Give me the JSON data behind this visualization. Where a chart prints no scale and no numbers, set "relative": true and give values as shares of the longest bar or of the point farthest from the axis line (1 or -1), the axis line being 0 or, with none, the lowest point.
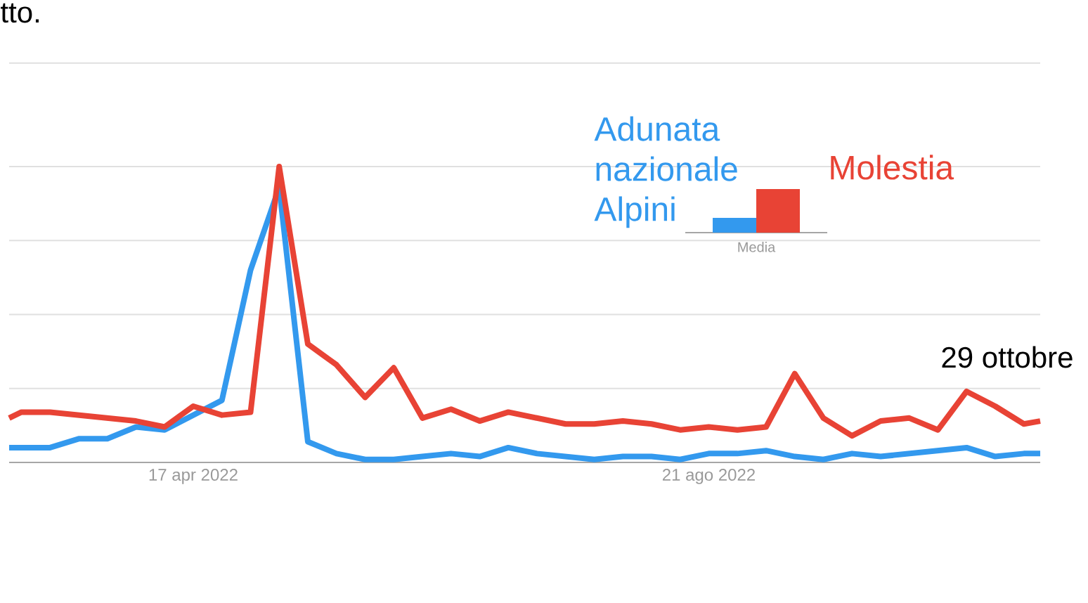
{
  "chart_data": [
    {
      "type": "line",
      "relative": true,
      "x": [
        "2022-03-03",
        "2022-03-06",
        "2022-03-13",
        "2022-03-20",
        "2022-03-27",
        "2022-04-03",
        "2022-04-10",
        "2022-04-17",
        "2022-04-24",
        "2022-05-01",
        "2022-05-08",
        "2022-05-15",
        "2022-05-22",
        "2022-05-29",
        "2022-06-05",
        "2022-06-12",
        "2022-06-19",
        "2022-06-26",
        "2022-07-03",
        "2022-07-10",
        "2022-07-17",
        "2022-07-24",
        "2022-07-31",
        "2022-08-07",
        "2022-08-14",
        "2022-08-21",
        "2022-08-28",
        "2022-09-04",
        "2022-09-11",
        "2022-09-18",
        "2022-09-25",
        "2022-10-02",
        "2022-10-09",
        "2022-10-16",
        "2022-10-23",
        "2022-10-30",
        "2022-11-06",
        "2022-11-10"
      ],
      "xlim": [
        "2022-03-03",
        "2022-11-10"
      ],
      "ref_lines": [
        {
          "axis": "y",
          "value": 0.25,
          "color": "#e0e0e0"
        },
        {
          "axis": "y",
          "value": 0.5,
          "color": "#e0e0e0"
        },
        {
          "axis": "y",
          "value": 0.75,
          "color": "#e0e0e0"
        },
        {
          "axis": "y",
          "value": 1,
          "color": "#e0e0e0"
        },
        {
          "axis": "y",
          "value": 1.35,
          "color": "#e0e0e0"
        }
      ],
      "xticks": [
        {
          "value": "2022-04-17",
          "label": "17 apr 2022"
        },
        {
          "value": "2022-08-21",
          "label": "21 ago 2022"
        }
      ],
      "series": [
        {
          "name": "Adunata nazionale Alpini",
          "color": "#3399ee",
          "values": [
            0.05,
            0.05,
            0.05,
            0.08,
            0.08,
            0.12,
            0.11,
            0.16,
            0.21,
            0.65,
            0.93,
            0.07,
            0.03,
            0.01,
            0.01,
            0.02,
            0.03,
            0.02,
            0.05,
            0.03,
            0.02,
            0.01,
            0.02,
            0.02,
            0.01,
            0.03,
            0.03,
            0.04,
            0.02,
            0.01,
            0.03,
            0.02,
            0.03,
            0.04,
            0.05,
            0.02,
            0.03,
            0.03
          ]
        },
        {
          "name": "Molestia",
          "color": "#e84335",
          "values": [
            0.15,
            0.17,
            0.17,
            0.16,
            0.15,
            0.14,
            0.12,
            0.19,
            0.16,
            0.17,
            1,
            0.4,
            0.33,
            0.22,
            0.32,
            0.15,
            0.18,
            0.14,
            0.17,
            0.15,
            0.13,
            0.13,
            0.14,
            0.13,
            0.11,
            0.12,
            0.11,
            0.12,
            0.3,
            0.15,
            0.09,
            0.14,
            0.15,
            0.11,
            0.24,
            0.19,
            0.13,
            0.14
          ]
        }
      ],
      "annotations": [
        "tto.",
        "29 ottobre"
      ]
    },
    {
      "type": "bar",
      "relative": true,
      "categories": [
        "Media"
      ],
      "series": [
        {
          "color": "#3399ee",
          "values": [
            0.34
          ]
        },
        {
          "color": "#e84335",
          "values": [
            1
          ]
        }
      ]
    }
  ]
}
